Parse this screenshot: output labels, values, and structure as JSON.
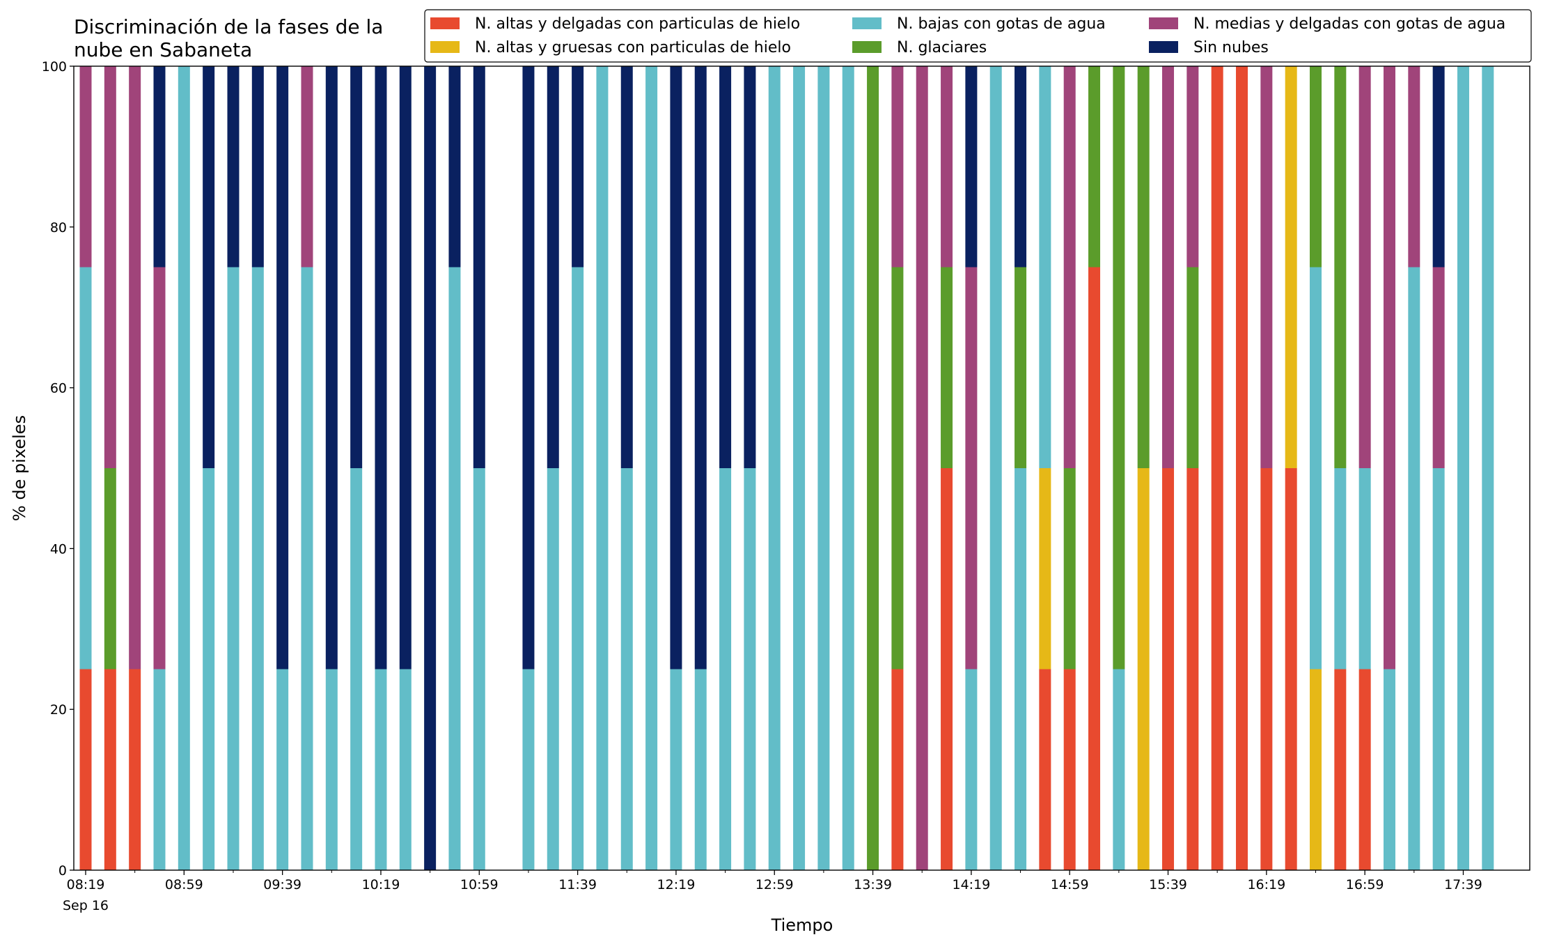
{
  "chart_data": {
    "type": "stacked_bar",
    "title": "Discriminación de la fases de la\nnube en Sabaneta",
    "x_label": "Tiempo",
    "y_label": "% de pixeles",
    "x_sublabel": "Sep 16",
    "categories": [
      "08:19",
      null,
      null,
      null,
      "08:59",
      null,
      null,
      null,
      "09:39",
      null,
      null,
      null,
      "10:19",
      null,
      null,
      null,
      "10:59",
      null,
      null,
      null,
      "11:39",
      null,
      null,
      null,
      "12:19",
      null,
      null,
      null,
      "12:59",
      null,
      null,
      null,
      "13:39",
      null,
      null,
      null,
      "14:19",
      null,
      null,
      null,
      "14:59",
      null,
      null,
      null,
      "15:39",
      null,
      null,
      null,
      "16:19",
      null,
      null,
      null,
      "16:59",
      null,
      null,
      null,
      "17:39",
      null
    ],
    "ylim": [
      0,
      100
    ],
    "yticks": [
      0,
      20,
      40,
      60,
      80,
      100
    ],
    "series": [
      {
        "name": "N. altas y delgadas con particulas de hielo",
        "color": "#e84a2f",
        "values": [
          25,
          25,
          25,
          0,
          0,
          0,
          0,
          0,
          0,
          0,
          0,
          0,
          0,
          0,
          0,
          0,
          0,
          0,
          0,
          0,
          0,
          0,
          0,
          0,
          0,
          0,
          0,
          0,
          0,
          0,
          0,
          0,
          0,
          25,
          0,
          50,
          0,
          0,
          0,
          25,
          25,
          75,
          0,
          0,
          50,
          50,
          100,
          100,
          50,
          50,
          0,
          25,
          25,
          0,
          0,
          0,
          0,
          0
        ]
      },
      {
        "name": "N. altas y gruesas con particulas de hielo",
        "color": "#e6b817",
        "values": [
          0,
          0,
          0,
          0,
          0,
          0,
          0,
          0,
          0,
          0,
          0,
          0,
          0,
          0,
          0,
          0,
          0,
          0,
          0,
          0,
          0,
          0,
          0,
          0,
          0,
          0,
          0,
          0,
          0,
          0,
          0,
          0,
          0,
          0,
          0,
          0,
          0,
          0,
          0,
          25,
          0,
          0,
          0,
          50,
          0,
          0,
          0,
          0,
          0,
          50,
          25,
          0,
          0,
          0,
          0,
          0,
          0,
          0
        ]
      },
      {
        "name": "N. bajas con gotas de agua",
        "color": "#62bdc8",
        "values": [
          50,
          0,
          0,
          25,
          100,
          50,
          75,
          75,
          25,
          75,
          25,
          50,
          25,
          25,
          0,
          75,
          50,
          0,
          25,
          50,
          75,
          100,
          50,
          100,
          25,
          25,
          50,
          50,
          100,
          100,
          100,
          100,
          0,
          0,
          0,
          0,
          25,
          100,
          50,
          50,
          0,
          0,
          25,
          0,
          0,
          0,
          0,
          0,
          0,
          0,
          50,
          25,
          25,
          25,
          75,
          50,
          100,
          100
        ]
      },
      {
        "name": "N. glaciares",
        "color": "#5b9c2b",
        "values": [
          0,
          25,
          0,
          0,
          0,
          0,
          0,
          0,
          0,
          0,
          0,
          0,
          0,
          0,
          0,
          0,
          0,
          0,
          0,
          0,
          0,
          0,
          0,
          0,
          0,
          0,
          0,
          0,
          0,
          0,
          0,
          0,
          100,
          50,
          0,
          25,
          0,
          0,
          25,
          0,
          25,
          25,
          75,
          50,
          0,
          25,
          0,
          0,
          0,
          0,
          25,
          50,
          0,
          0,
          0,
          0,
          0,
          0
        ]
      },
      {
        "name": "N. medias y delgadas con gotas de agua",
        "color": "#a0447a",
        "values": [
          25,
          50,
          75,
          50,
          0,
          0,
          0,
          0,
          0,
          25,
          0,
          0,
          0,
          0,
          0,
          0,
          0,
          0,
          0,
          0,
          0,
          0,
          0,
          0,
          0,
          0,
          0,
          0,
          0,
          0,
          0,
          0,
          0,
          25,
          100,
          25,
          50,
          0,
          0,
          0,
          50,
          0,
          0,
          0,
          50,
          25,
          0,
          0,
          50,
          0,
          0,
          0,
          50,
          75,
          25,
          25,
          0,
          0
        ]
      },
      {
        "name": "Sin nubes",
        "color": "#0a2160",
        "values": [
          0,
          0,
          0,
          25,
          0,
          50,
          25,
          25,
          75,
          0,
          75,
          50,
          75,
          75,
          100,
          25,
          50,
          0,
          75,
          50,
          25,
          0,
          50,
          0,
          75,
          75,
          50,
          50,
          0,
          0,
          0,
          0,
          0,
          0,
          0,
          0,
          25,
          0,
          25,
          0,
          0,
          0,
          0,
          0,
          0,
          0,
          0,
          0,
          0,
          0,
          0,
          0,
          0,
          0,
          0,
          25,
          0,
          0
        ]
      }
    ]
  }
}
